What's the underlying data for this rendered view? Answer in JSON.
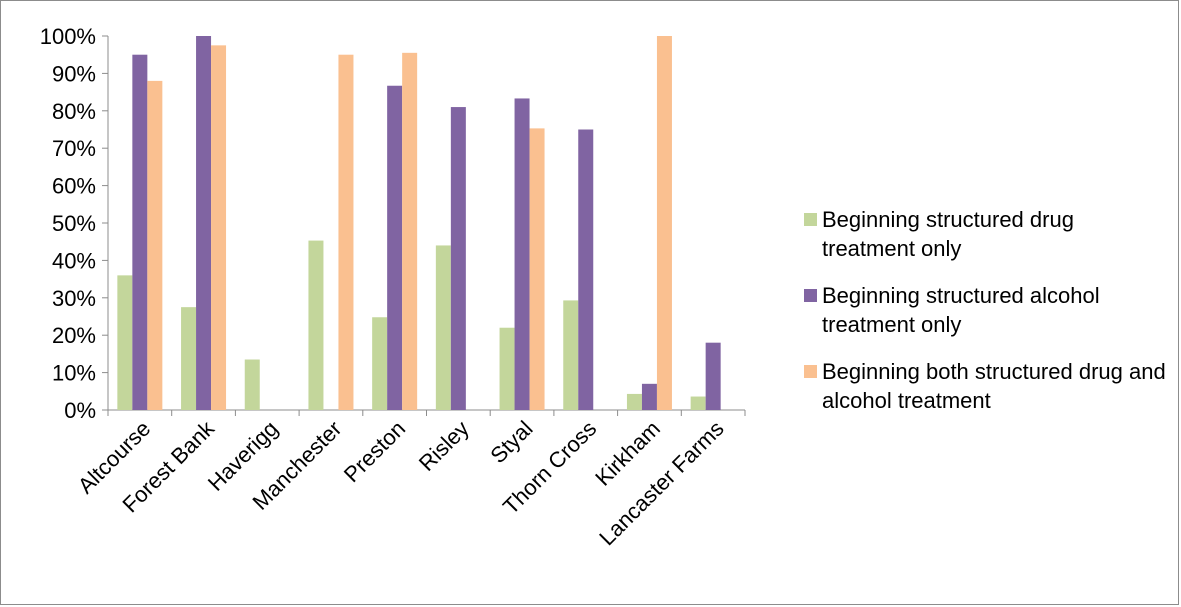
{
  "chart_data": {
    "type": "bar",
    "title": "",
    "xlabel": "",
    "ylabel": "",
    "ylim": [
      0,
      100
    ],
    "yticks": [
      "0%",
      "10%",
      "20%",
      "30%",
      "40%",
      "50%",
      "60%",
      "70%",
      "80%",
      "90%",
      "100%"
    ],
    "categories": [
      "Altcourse",
      "Forest Bank",
      "Haverigg",
      "Manchester",
      "Preston",
      "Risley",
      "Styal",
      "Thorn Cross",
      "Kirkham",
      "Lancaster Farms"
    ],
    "series": [
      {
        "name": "Beginning structured drug treatment only",
        "color": "#c3d69b",
        "values": [
          36,
          27.5,
          13.5,
          45.3,
          24.8,
          44,
          22,
          29.3,
          4.3,
          3.6
        ]
      },
      {
        "name": "Beginning structured alcohol treatment only",
        "color": "#8064a2",
        "values": [
          95,
          100,
          0,
          0,
          86.7,
          81,
          83.3,
          75,
          7,
          18
        ]
      },
      {
        "name": "Beginning both structured drug and alcohol treatment",
        "color": "#fac090",
        "values": [
          88,
          97.5,
          0,
          95,
          95.5,
          0,
          75.3,
          0,
          100,
          0
        ]
      }
    ],
    "legend_position": "right",
    "grid": false
  }
}
